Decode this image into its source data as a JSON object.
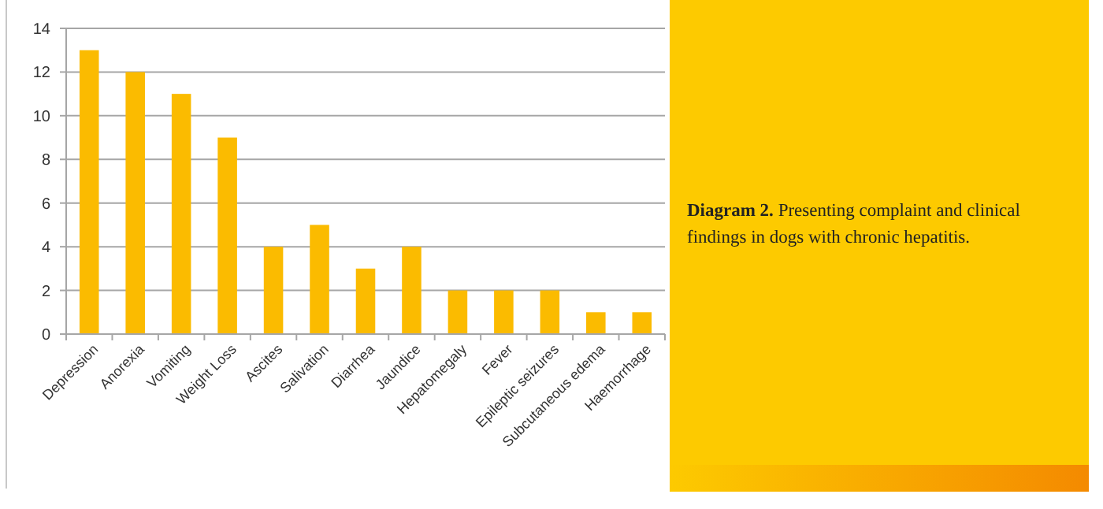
{
  "chart_data": {
    "type": "bar",
    "categories": [
      "Depression",
      "Anorexia",
      "Vomiting",
      "Weight Loss",
      "Ascites",
      "Salivation",
      "Diarrhea",
      "Jaundice",
      "Hepatomegaly",
      "Fever",
      "Epileptic seizures",
      "Subcutaneous edema",
      "Haemorrhage"
    ],
    "values": [
      13,
      12,
      11,
      9,
      4,
      5,
      3,
      4,
      2,
      2,
      2,
      1,
      1
    ],
    "color": "#fbbb00",
    "ylim": [
      0,
      14
    ],
    "yticks": [
      0,
      2,
      4,
      6,
      8,
      10,
      12,
      14
    ],
    "grid": "y",
    "annotations": [
      "Diagram 2.",
      "Presenting complaint and clinical findings in dogs with chronic hepatitis."
    ]
  }
}
